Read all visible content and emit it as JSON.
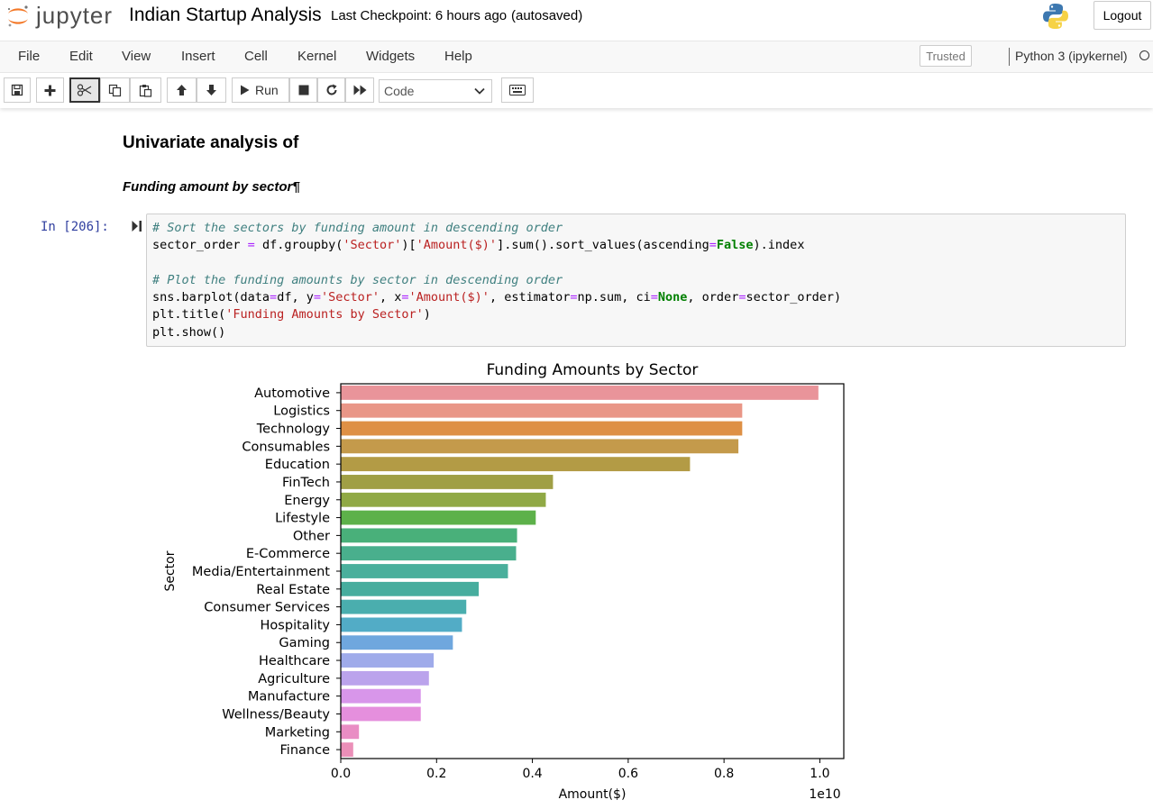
{
  "app": {
    "brand": "jupyter",
    "notebook_name": "Indian Startup Analysis",
    "checkpoint": "Last Checkpoint: 6 hours ago",
    "autosave": "(autosaved)",
    "logout_label": "Logout"
  },
  "menu": {
    "items": [
      "File",
      "Edit",
      "View",
      "Insert",
      "Cell",
      "Kernel",
      "Widgets",
      "Help"
    ],
    "trusted_label": "Trusted",
    "kernel_name": "Python 3 (ipykernel)"
  },
  "toolbar": {
    "run_label": "Run",
    "cell_type": "Code",
    "icons": [
      "save-icon",
      "add-cell-icon",
      "cut-icon",
      "copy-icon",
      "paste-icon",
      "move-up-icon",
      "move-down-icon",
      "run-icon",
      "stop-icon",
      "restart-icon",
      "fast-forward-icon",
      "keyboard-icon"
    ]
  },
  "cells": {
    "heading": "Univariate analysis of",
    "subheading": "Funding amount by sector¶",
    "code_prompt": "In [206]:",
    "code_lines": [
      "# Sort the sectors by funding amount in descending order",
      "sector_order = df.groupby('Sector')['Amount($)'].sum().sort_values(ascending=False).index",
      "",
      "# Plot the funding amounts by sector in descending order",
      "sns.barplot(data=df, y='Sector', x='Amount($)', estimator=np.sum, ci=None, order=sector_order)",
      "plt.title('Funding Amounts by Sector')",
      "plt.show()"
    ]
  },
  "chart_data": {
    "type": "bar",
    "orientation": "horizontal",
    "title": "Funding Amounts by Sector",
    "xlabel": "Amount($)",
    "ylabel": "Sector",
    "x_offset_label": "1e10",
    "xlim": [
      0,
      1.05
    ],
    "xticks": [
      "0.0",
      "0.2",
      "0.4",
      "0.6",
      "0.8",
      "1.0"
    ],
    "units": "1e10 USD",
    "categories": [
      "Automotive",
      "Logistics",
      "Technology",
      "Consumables",
      "Education",
      "FinTech",
      "Energy",
      "Lifestyle",
      "Other",
      "E-Commerce",
      "Media/Entertainment",
      "Real Estate",
      "Consumer Services",
      "Hospitality",
      "Gaming",
      "Healthcare",
      "Agriculture",
      "Manufacture",
      "Wellness/Beauty",
      "Marketing",
      "Finance"
    ],
    "values": [
      0.997,
      0.838,
      0.838,
      0.83,
      0.729,
      0.443,
      0.428,
      0.407,
      0.368,
      0.366,
      0.349,
      0.288,
      0.262,
      0.253,
      0.234,
      0.194,
      0.184,
      0.167,
      0.167,
      0.038,
      0.026
    ],
    "colors": [
      "#e9949a",
      "#e99687",
      "#de9045",
      "#c49a4b",
      "#b39b45",
      "#a09f45",
      "#90a945",
      "#5db14a",
      "#49b07a",
      "#49af8d",
      "#4aaf9c",
      "#47ad9e",
      "#4aaeae",
      "#52acc6",
      "#6fa7de",
      "#9fabea",
      "#bba3ec",
      "#d896ea",
      "#e58fdd",
      "#e98dc4",
      "#eb8fb8"
    ],
    "grid": false,
    "legend": "none"
  }
}
